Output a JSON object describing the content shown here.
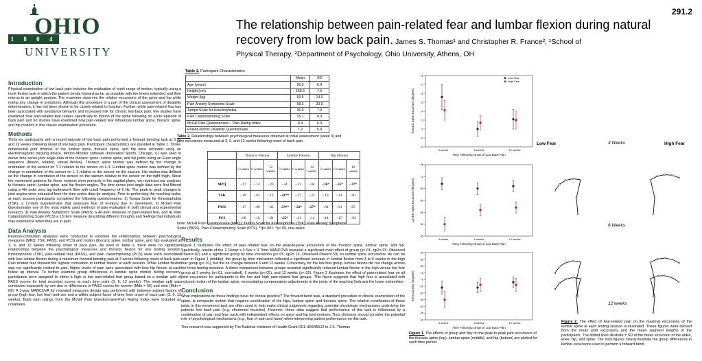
{
  "header": {
    "logo_text": "OHIO",
    "logo_sub": "UNIVERSITY",
    "logo_year": "1 8 0 4",
    "poster_number": "291.2",
    "title": "The relationship between pain-related fear and lumbar flexion during natural recovery from low back pain.",
    "authors": " James S. Thomas¹ and Christopher R. France², ¹School of",
    "affiliation": "Physical Therapy, ²Department of Psychology,  Ohio University,  Athens, OH"
  },
  "sections": {
    "intro_h": "Introduction",
    "intro": "Physical examination of low back pain includes the evaluation of trunk range of motion, typically using a trunk flexion task in which the patient bends forward as far as possible with the knees extended and then returns to an upright posture. The examiner observes the relative excursions of the spine and hip while noting any change in symptoms. Although this procedure is a part of the clinical assessment of disability determination, it has not been shown to be closely related to function. Further, while pain-related fear has been associated with avoidance behavior and increased risk for chronic low back pain; few studies have examined how pain-related fear relates specifically to motion of the spine following an acute episode of back pain and no studies have examined how pain-related fear influences lumbar spine, thoracic spine, and hip motions in this classic examination procedure.",
    "methods_h": "Methods",
    "methods": "Thirty-six participants with a recent episode of low back pain performed a forward bending task at 3, 6, and 12 weeks following onset of low back pain. Participant characteristics are provided in Table 1. Three-dimensional joint motions of the lumbar spine, thoracic spine, and hip were recorded using an electromagnetic tracking device. Motion Monitor software (Innovation Sports, Chicago, IL) was used to derive time series joint angle data of the thoracic spine, lumbar spine, and hip joints using an Euler angle sequence (flexion, rotation, lateral flexion). Thoracic spine motion was defined by the change in orientation of the sensor on T-1 relative to the sensor on L-1. Lumbar spine motion was defined by the change in orientation of the sensor on L-1 relative to the sensor on the sacrum. Hip motion was defined as the change in orientation of the sensor on the sacrum relative to the sensor on the right thigh. Since the movement patterns for these motions were primarily in the sagittal plane, we restricted our analyses to thoracic spine, lumbar spine, and hip flexion angles. The time series joint angle data were first filtered using a 4th order zero lag butterworth filter with cutoff frequency of 6 Hz. The peak to peak changes in joint angles were extracted from the time series data for analysis. Prior to performing the reaching tasks, at each session participants completed the following questionnaires: 1) Tampa Scale for Kinesiophobia (TSK), a 17-item questionnaire that assesses fear of re-injury due to movement, 2) McGill Pain Questionnaire one of the most widely used methods of pain evaluation in both clinical and experimental research, 3) Pain Anxiety Symptoms Scale (PASS) a 40-item measure of pain-related fear, and 4) Pain Catastrophizing Scale (PCS) a 13 item measure describing different thoughts and feelings that individuals may experience when they are in pain.",
    "data_h": "Data Analysis",
    "data": "Pearson-correlation analyses were conducted to examine the relationships between psychological measures (MPQ, TSK, PASS, and PCS) and motion (thoracic spine, lumbar spine, and hip) evaluated at 3, 6, and 12 weeks following onset of back pain. As seen in Table 2, there were no significant relationships between the psychological measures and thoracic flexion for any testing session. Kinesiophobia (TSK), pain-related fear (PASS), and pain catastrophizing (PCS) were each associated with less lumbar flexion during a maximum forward bending task at 3 weeks following onset of back pain. Pain related fear showed the highest correlation to lumbar flexion at each session. While lumbar flexion was not significantly related to pain, higher levels of pain were associated with less hip flexion at each follow up interval. To further examine group differences in lumbar spine motion during recovery, participants were assigned to either a high or low pain-related fear group based on a median split of PASS scores for total recorded scores at each time point (3, 6, 12 weeks). The median split was conducted separately by sex due to differences in PASS scores for women (Mdn = 56) and men (Mdn = 69). A 3-way MANCOVA for repeated measures design was performed with between subject factors of group (high fear, low fear) and sex and a within subject factor of time from onset of back pain (3, 6, 12 weeks). Back pain ratings from the McGill Pain Questionnaire-Pain Rating Index were included as covariates.",
    "results_h": "Results",
    "results": "Figure 1 illustrates the effect of pain related fear on the peak-to-peak excursions of the thoracic spine, lumbar spine, and hip. Specifically, results of the 2 Group x 2 Sex x 3 Time MANCOVA revealed a significant main effect of group (p<.01, ηp2=.23; Observed Power=.82) and a significant group by time interaction (p<.05, ηp2=.19, Observed Power=.59) on lumbar spine excursions. As can be seen in Figure 1 (middle), the group by time interaction reflected a significant increase in lumbar flexion from 3 to 6 weeks in the high fear group (p<.01), but the no change between 6 and 12 weeks. Conversely, for the low fear group, lumbar flexion did not change across the three testing sessions. A direct comparison between groups revealed significantly reduced lumbar flexion in the high versus low fear group at 3 weeks (p<.01, one-tailed), 6 weeks (p<.05), and 12 weeks (p<.05). Figure 2 illustrates the effect of pain-related fear on all joint excursions for participants in the low and high pain-related fear groups. This figure suggests that high fear is associated with reduced motion of the lumbar spine, necessitating compensatory adjustments in the joints of the reaching limb and the lower extremities.",
    "concl_h": "Conclusion",
    "concl": "What implications do these findings have for clinical practice? The forward bend task, a standard procedure in clinical examination of the spine, is composite motion that requires coordination of the hips, lumbar spine and thoracic spine. The relative contribution of these joints in this movement task are often used to help make clinical judgments regarding potential physiologic mechanisms underlying the patients low back pain (e.g. shortened muscles). However, these data suggest that performance of this task is influenced by a combination of pain and fear, each with independent effects on spine and hip joint motions. Thus clinicians should consider the potential role of psychological mechanisms (e.g., fear of pain and harm) when interpreting patient performance on this task.",
    "funding": "This research was supported by The National Institutes of Health Grant R01-HD045512 to J.S. Thomas"
  },
  "table1": {
    "caption_b": "Table 1.",
    "caption": " Participant Characteristics",
    "head": [
      "",
      "Mean",
      "SD"
    ],
    "rows": [
      [
        "Age (years)",
        "26.9",
        "6.9"
      ],
      [
        "Height (cm)",
        "169.5",
        "7.6"
      ],
      [
        "Weight (kg)",
        "69.5",
        "14.0"
      ],
      [
        "Pain Anxiety Symptoms Scale",
        "58.3",
        "23.9"
      ],
      [
        "Tampa Scale for Kinesiophobia",
        "36.9",
        "7.9"
      ],
      [
        "Pain Catastrophizing Scale",
        "15.1",
        "9.3"
      ],
      [
        "McGill Pain Questionnaire – Pain Rating Index",
        "9.4",
        "6.9"
      ],
      [
        "Roland-Morris Disability Questionnaire",
        "7.2",
        "5.9"
      ]
    ]
  },
  "table2": {
    "caption_b": "Table 2.",
    "caption": " Relationships between psychological measures obtained at initial assessment (week 3) and joint excursions measured at 3, 6, and 12 weeks following onset of back pain.",
    "groups": [
      "Thoracic Flexion",
      "Lumbar Flexion",
      "Hip Flexion"
    ],
    "weeks": [
      "3 weeks",
      "6 weeks",
      "12 weeks",
      "3 weeks",
      "6 weeks",
      "12 weeks",
      "3 weeks",
      "6 weeks",
      "12 weeks"
    ],
    "rows": [
      [
        "MPQ",
        "-.17",
        "-.14",
        "-.20",
        "-.24",
        "-.21",
        "-.04",
        "-.36*",
        "-.35*",
        "-.37*"
      ],
      [
        "TSK",
        "-.18",
        "-.01",
        "-.13",
        "-.41**",
        "-.27",
        "-.22",
        "-.19",
        "-.14",
        "-.03"
      ],
      [
        "PASS",
        "-.17",
        "-.00",
        "-.02",
        "-.54**",
        "-.32*",
        "-.27*",
        "-.04",
        "-.01",
        ".05"
      ],
      [
        "PCS",
        "-.08",
        "-.16",
        "-.01",
        "-.35*",
        "-.21",
        "-.14",
        "-.14",
        "-.15",
        "-.03"
      ]
    ],
    "note": "Note: McGill Pain Questionnaire (MPQ), Tampa Scale for Kinesiophobia (TSK), Pain Anxiety Symptoms Scale (PASS), Pain Catastrophizing Scale (PCS). **p<.001; *p<.05, one-tailed."
  },
  "chart_data": [
    {
      "type": "scatter",
      "title": "",
      "xlabel": "Time Following Onset of Low Back Pain",
      "ylabel": "Thoracic Spine Excursion (degrees)",
      "categories": [
        "3 weeks",
        "6 weeks",
        "12 weeks"
      ],
      "ylim": [
        10,
        18
      ],
      "yticks": [
        10,
        11,
        12,
        13,
        14,
        15,
        16,
        17,
        18
      ],
      "legend": "top-right",
      "series": [
        {
          "name": "Low Fear",
          "color": "#222222",
          "values": [
            15.6,
            12.0,
            13.1
          ],
          "err": [
            1.4,
            0.8,
            1.1
          ]
        },
        {
          "name": "High Fear",
          "color": "#c8102e",
          "values": [
            14.1,
            12.7,
            13.0
          ],
          "err": [
            1.1,
            0.8,
            1.0
          ]
        }
      ]
    },
    {
      "type": "scatter",
      "title": "",
      "xlabel": "Time Following Onset of Low Back Pain",
      "ylabel": "Lumbar Spine Excursion (degrees)",
      "categories": [
        "3 weeks",
        "6 weeks",
        "12 weeks"
      ],
      "ylim": [
        45,
        75
      ],
      "yticks": [
        45,
        50,
        55,
        60,
        65,
        70,
        75
      ],
      "series": [
        {
          "name": "Low Fear",
          "color": "#222222",
          "values": [
            67,
            65,
            66
          ],
          "err": [
            2.5,
            2.5,
            2.3
          ]
        },
        {
          "name": "High Fear",
          "color": "#c8102e",
          "values": [
            50,
            56,
            57
          ],
          "err": [
            3,
            2.5,
            2.4
          ]
        }
      ]
    },
    {
      "type": "scatter",
      "title": "",
      "xlabel": "Time Following Onset of Low Back Pain",
      "ylabel": "Hip Excursion (degrees)",
      "categories": [
        "3 weeks",
        "6 weeks",
        "12 weeks"
      ],
      "ylim": [
        40,
        90
      ],
      "yticks": [
        40,
        45,
        50,
        55,
        60,
        65,
        70,
        75,
        80,
        85,
        90
      ],
      "series": [
        {
          "name": "Low Fear",
          "color": "#222222",
          "values": [
            64,
            64,
            68
          ],
          "err": [
            5,
            4,
            4
          ]
        },
        {
          "name": "High Fear",
          "color": "#c8102e",
          "values": [
            55,
            66,
            66
          ],
          "err": [
            6,
            5,
            5
          ]
        }
      ]
    }
  ],
  "figure1": {
    "caption_b": "Figure 1.",
    "caption": " The effects of group and day on the peak to peak joint excursions of the thoracic spine (top), lumbar spine (middle), and hip (bottom) are plotted for each time period."
  },
  "figure2": {
    "low": "Low Fear",
    "high": "High Fear",
    "labels": [
      "3 Weeks",
      "6 Weeks",
      "12 weeks"
    ],
    "caption_b": "Figure 2.",
    "caption": " The effect of fear-related pain on the maximal excursions of the lumbar spine at each testing session is illustrated. These figures were derived from the mean joint excursions and the mean segment lengths of the participants. The dotted lines illustrate ± SD of the mean excursion of the ankle, knee, hip, and spine. The stick figures clearly illustrate the group differences in lumbar excursions used to perform a forward bend."
  }
}
